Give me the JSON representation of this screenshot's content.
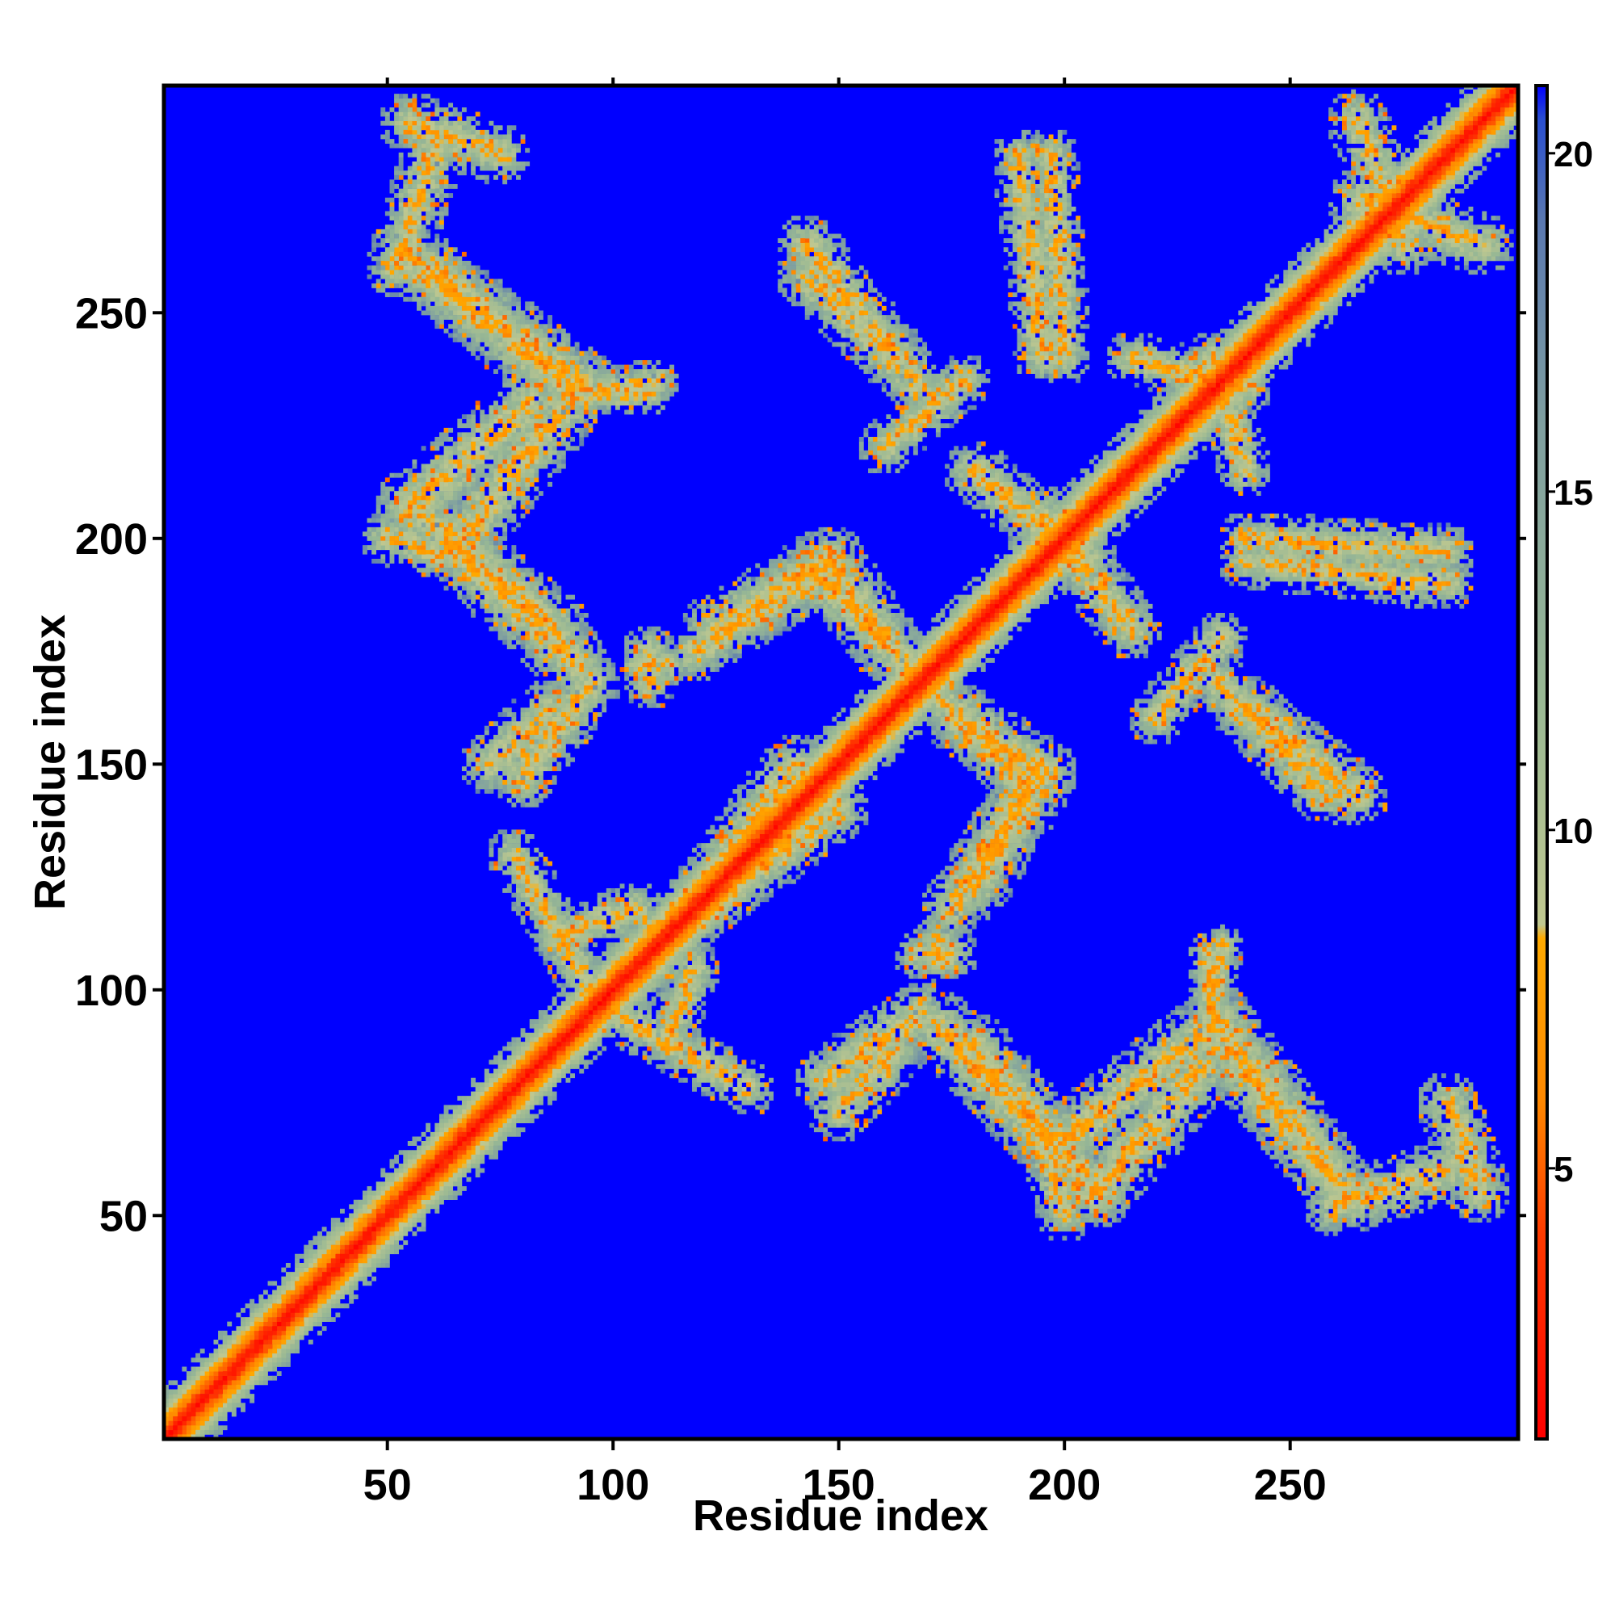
{
  "chart_data": {
    "type": "heatmap",
    "title": "",
    "xlabel": "Residue index",
    "ylabel": "Residue index",
    "x_range": [
      1,
      300
    ],
    "y_range": [
      1,
      300
    ],
    "x_ticks": [
      50,
      100,
      150,
      200,
      250
    ],
    "y_ticks": [
      50,
      100,
      150,
      200,
      250
    ],
    "colorbar": {
      "range": [
        1,
        21
      ],
      "ticks": [
        5,
        10,
        15,
        20
      ],
      "stops": [
        {
          "value": 1,
          "color": "#ff0000"
        },
        {
          "value": 4,
          "color": "#ff3a00"
        },
        {
          "value": 6,
          "color": "#ff8800"
        },
        {
          "value": 8.4,
          "color": "#ffaa00"
        },
        {
          "value": 8.6,
          "color": "#c0c890"
        },
        {
          "value": 12,
          "color": "#98b894"
        },
        {
          "value": 16,
          "color": "#7f9fa0"
        },
        {
          "value": 19,
          "color": "#5a78b0"
        },
        {
          "value": 20.5,
          "color": "#2a4fd0"
        },
        {
          "value": 21,
          "color": "#0000ff"
        }
      ]
    },
    "background_value": 21,
    "background_color": "#0000ff",
    "diagonal_band_halfwidth_residues": 11,
    "contact_bands": [
      {
        "x1": 55,
        "y1": 292,
        "x2": 75,
        "y2": 285,
        "hw": 7
      },
      {
        "x1": 55,
        "y1": 262,
        "x2": 93,
        "y2": 234,
        "hw": 8
      },
      {
        "x1": 93,
        "y1": 234,
        "x2": 65,
        "y2": 198,
        "hw": 8
      },
      {
        "x1": 50,
        "y1": 200,
        "x2": 68,
        "y2": 195,
        "hw": 6
      },
      {
        "x1": 68,
        "y1": 195,
        "x2": 92,
        "y2": 172,
        "hw": 8
      },
      {
        "x1": 73,
        "y1": 150,
        "x2": 86,
        "y2": 162,
        "hw": 7
      },
      {
        "x1": 100,
        "y1": 232,
        "x2": 108,
        "y2": 232,
        "hw": 5
      },
      {
        "x1": 106,
        "y1": 172,
        "x2": 112,
        "y2": 172,
        "hw": 5
      },
      {
        "x1": 118,
        "y1": 175,
        "x2": 145,
        "y2": 192,
        "hw": 7
      },
      {
        "x1": 145,
        "y1": 192,
        "x2": 165,
        "y2": 172,
        "hw": 7
      },
      {
        "x1": 143,
        "y1": 258,
        "x2": 168,
        "y2": 234,
        "hw": 7
      },
      {
        "x1": 140,
        "y1": 150,
        "x2": 118,
        "y2": 120,
        "hw": 7
      },
      {
        "x1": 177,
        "y1": 160,
        "x2": 195,
        "y2": 148,
        "hw": 8
      },
      {
        "x1": 195,
        "y1": 148,
        "x2": 180,
        "y2": 123,
        "hw": 8
      },
      {
        "x1": 168,
        "y1": 108,
        "x2": 175,
        "y2": 108,
        "hw": 6
      },
      {
        "x1": 190,
        "y1": 285,
        "x2": 195,
        "y2": 240,
        "hw": 6
      },
      {
        "x1": 180,
        "y1": 215,
        "x2": 205,
        "y2": 195,
        "hw": 7
      },
      {
        "x1": 233,
        "y1": 240,
        "x2": 240,
        "y2": 215,
        "hw": 6
      },
      {
        "x1": 240,
        "y1": 200,
        "x2": 285,
        "y2": 197,
        "hw": 6
      },
      {
        "x1": 220,
        "y1": 160,
        "x2": 235,
        "y2": 178,
        "hw": 6
      },
      {
        "x1": 240,
        "y1": 163,
        "x2": 265,
        "y2": 143,
        "hw": 7
      },
      {
        "x1": 147,
        "y1": 80,
        "x2": 168,
        "y2": 95,
        "hw": 7
      },
      {
        "x1": 180,
        "y1": 87,
        "x2": 207,
        "y2": 55,
        "hw": 8
      },
      {
        "x1": 207,
        "y1": 55,
        "x2": 230,
        "y2": 82,
        "hw": 8
      },
      {
        "x1": 232,
        "y1": 95,
        "x2": 235,
        "y2": 110,
        "hw": 5
      },
      {
        "x1": 235,
        "y1": 88,
        "x2": 258,
        "y2": 60,
        "hw": 8
      },
      {
        "x1": 260,
        "y1": 52,
        "x2": 285,
        "y2": 60,
        "hw": 7
      },
      {
        "x1": 100,
        "y1": 95,
        "x2": 130,
        "y2": 78,
        "hw": 6
      },
      {
        "x1": 88,
        "y1": 112,
        "x2": 105,
        "y2": 118,
        "hw": 6
      },
      {
        "x1": 265,
        "y1": 275,
        "x2": 293,
        "y2": 265,
        "hw": 7
      }
    ]
  }
}
